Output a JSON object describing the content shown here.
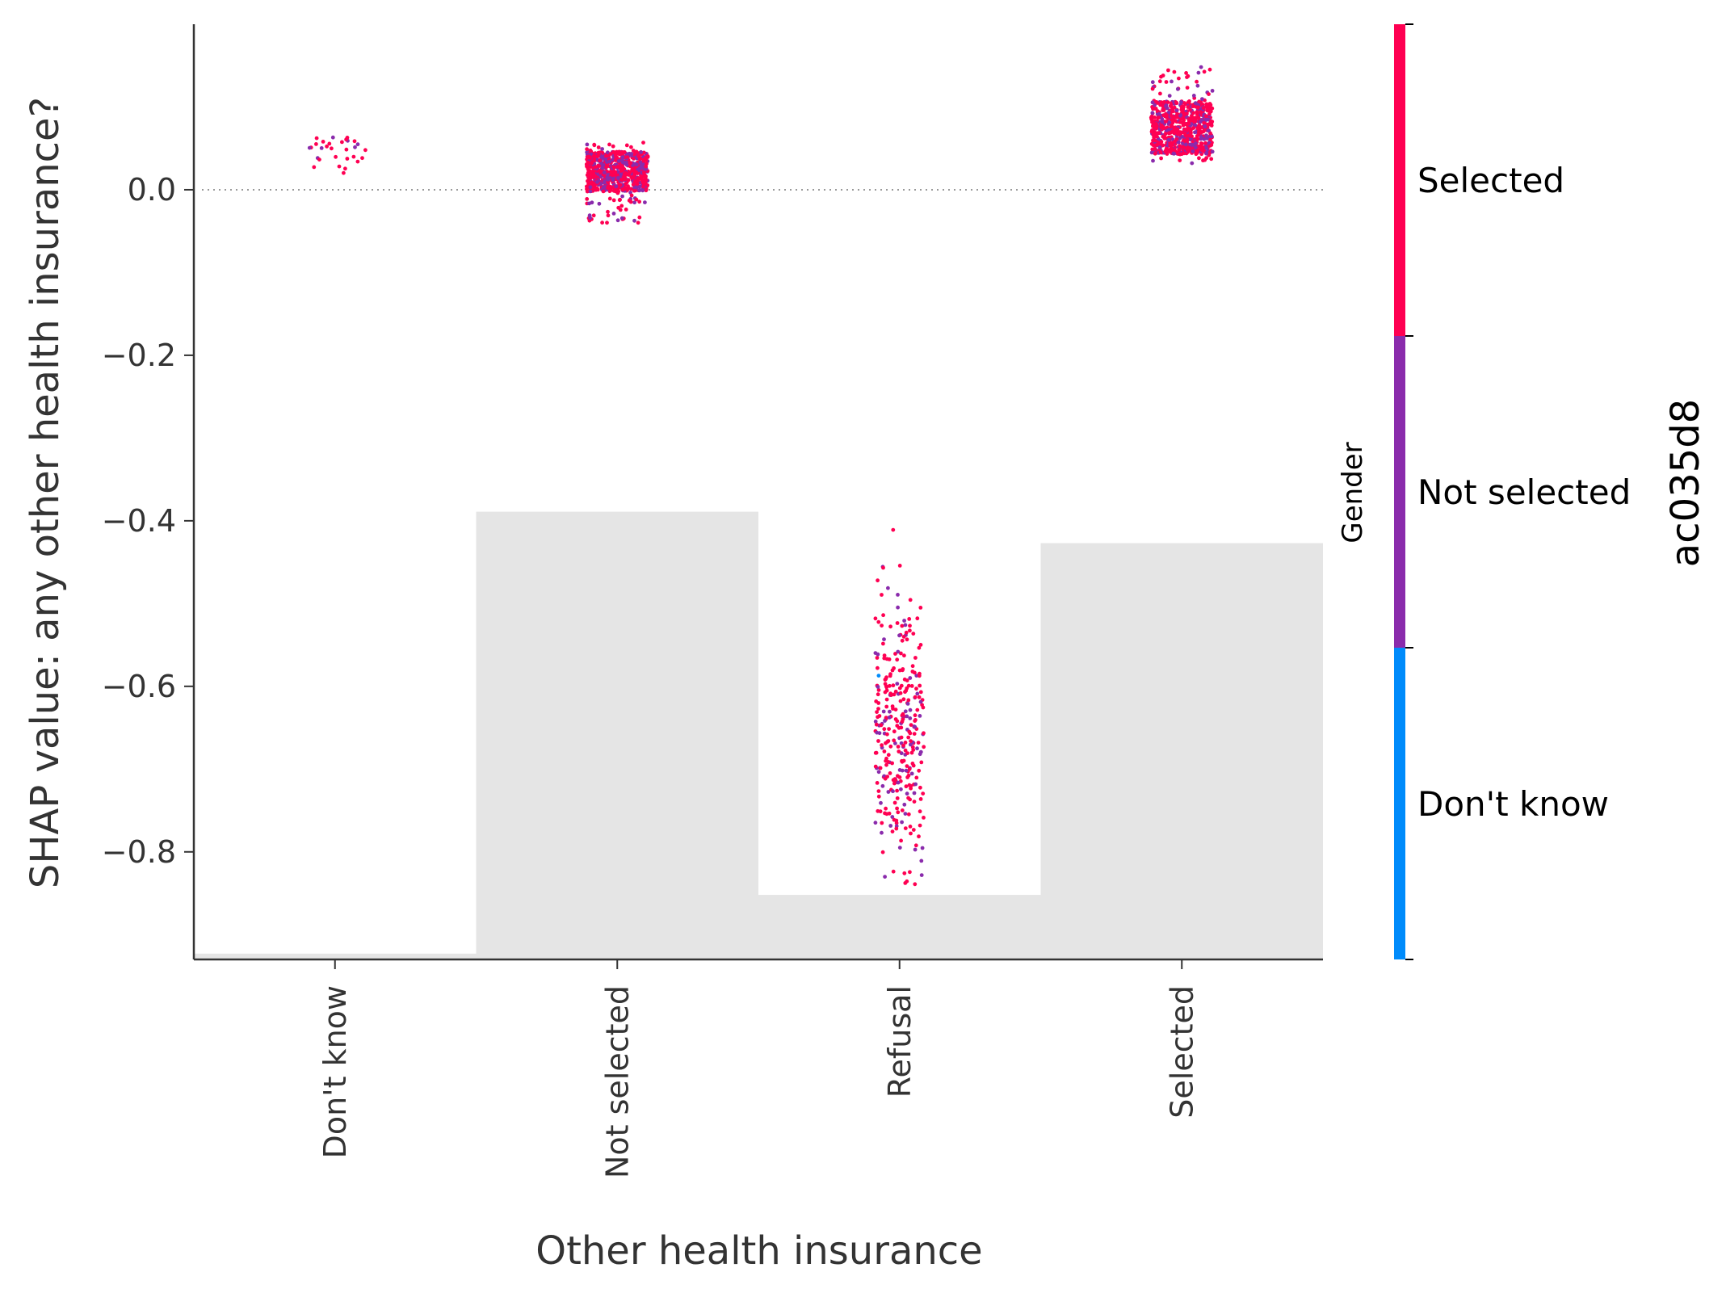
{
  "chart_data": {
    "type": "scatter",
    "title": "",
    "xlabel": "Other health insurance",
    "ylabel": "SHAP value: any other health insurance?",
    "categories": [
      "Don't know",
      "Not selected",
      "Refusal",
      "Selected"
    ],
    "ylim": [
      -0.93,
      0.2
    ],
    "yticks": [
      "0.0",
      "−0.2",
      "−0.4",
      "−0.6",
      "−0.8"
    ],
    "ytick_values": [
      0.0,
      -0.2,
      -0.4,
      -0.6,
      -0.8
    ],
    "zero_line": true,
    "histogram_bars": [
      {
        "category": "Don't know",
        "top": -0.923
      },
      {
        "category": "Not selected",
        "top": -0.389
      },
      {
        "category": "Refusal",
        "top": -0.852
      },
      {
        "category": "Selected",
        "top": -0.427
      }
    ],
    "series": [
      {
        "category": "Don't know",
        "points": 30,
        "y_center": 0.042,
        "y_spread": 0.028,
        "y_min": 0.013,
        "y_max": 0.07
      },
      {
        "category": "Not selected",
        "points": 700,
        "y_center": 0.022,
        "y_spread": 0.03,
        "y_min": -0.04,
        "y_max": 0.058
      },
      {
        "category": "Refusal",
        "points": 330,
        "y_center": -0.66,
        "y_spread": 0.15,
        "y_min": -0.878,
        "y_max": -0.411
      },
      {
        "category": "Selected",
        "points": 700,
        "y_center": 0.075,
        "y_spread": 0.04,
        "y_min": 0.032,
        "y_max": 0.15
      }
    ],
    "colorbar": {
      "title": "ac035d8",
      "secondary_title": "Gender",
      "levels": [
        {
          "label": "Selected",
          "color": "#ff0052"
        },
        {
          "label": "Not selected",
          "color": "#8a2bac"
        },
        {
          "label": "Don't know",
          "color": "#008bfb"
        }
      ]
    },
    "colors": {
      "selected": "#ff0052",
      "not_selected": "#8a2bac",
      "dont_know": "#008bfb",
      "bar": "#e5e5e5",
      "axis": "#333333"
    },
    "legend": "right"
  }
}
